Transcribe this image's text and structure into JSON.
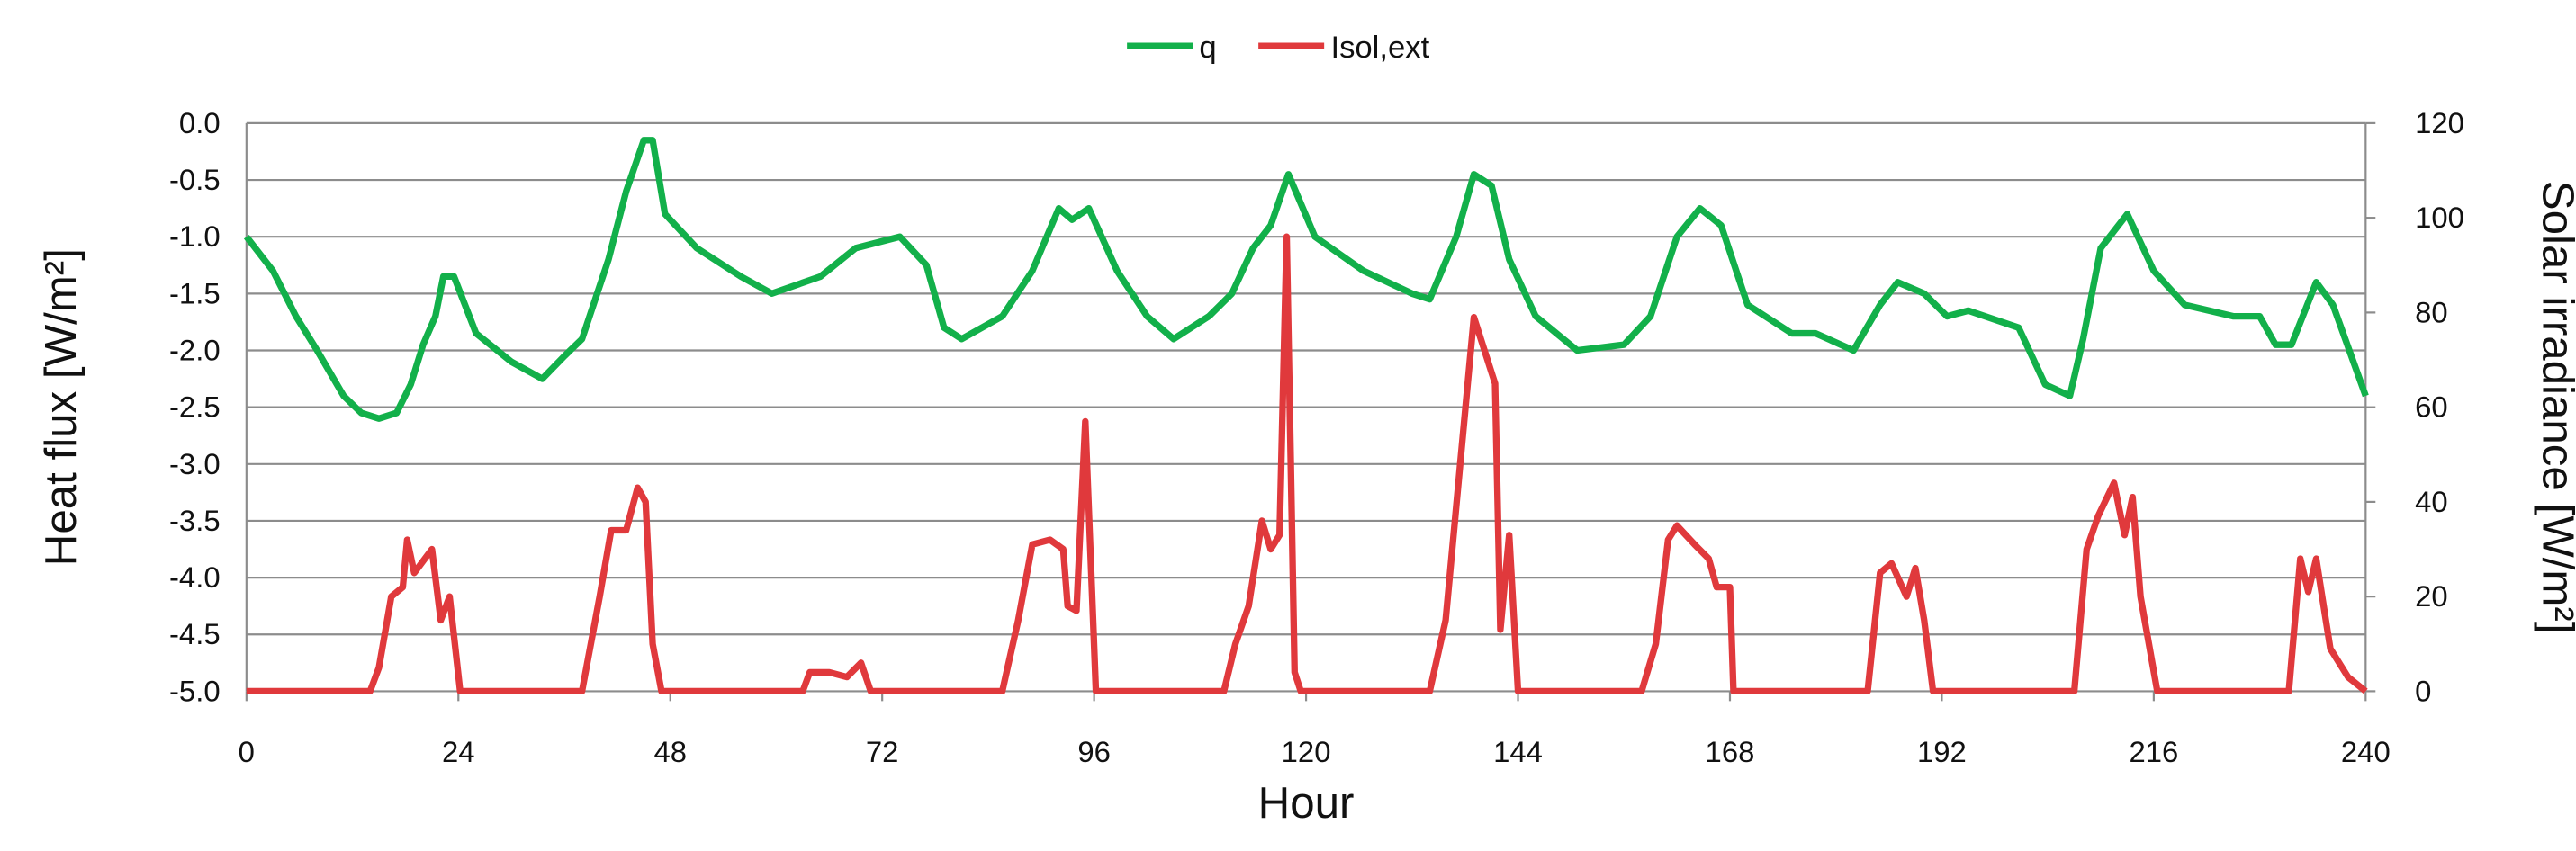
{
  "chart_data": {
    "type": "line",
    "x_label": "Hour",
    "y_label": "Heat flux [W/m²]",
    "y2_label": "Solar irradiance [W/m²]",
    "xlim": [
      0,
      240
    ],
    "xticks": [
      0,
      24,
      48,
      72,
      96,
      120,
      144,
      168,
      192,
      216,
      240
    ],
    "ylim": [
      -5,
      0
    ],
    "yticks": [
      {
        "value": 0,
        "label": "0.0"
      },
      -0.5,
      {
        "value": -1,
        "label": "-1.0"
      },
      -1.5,
      {
        "value": -2,
        "label": "-2.0"
      },
      -2.5,
      {
        "value": -3,
        "label": "-3.0"
      },
      -3.5,
      {
        "value": -4,
        "label": "-4.0"
      },
      -4.5,
      {
        "value": -5,
        "label": "-5.0"
      }
    ],
    "y2lim": [
      0,
      120
    ],
    "y2ticks": [
      0,
      20,
      40,
      60,
      80,
      100,
      120
    ],
    "grid": true,
    "legend": "top",
    "series": [
      {
        "name": "q",
        "color": "#12b04a",
        "x": [
          0,
          3,
          5.6,
          8,
          11,
          13,
          15,
          17,
          18.6,
          20,
          21.4,
          22.3,
          23.5,
          26,
          30,
          33.5,
          36,
          38,
          41,
          43,
          45,
          46,
          47.4,
          51,
          56,
          59.5,
          65,
          69,
          74,
          77,
          79,
          81,
          85.6,
          89,
          92,
          93.5,
          95.4,
          98.6,
          102,
          105,
          109,
          111.6,
          114,
          116,
          118,
          121,
          126.5,
          132,
          134,
          137,
          139,
          141,
          143,
          146,
          150.7,
          156,
          159,
          162,
          164.6,
          167,
          170,
          175,
          177.7,
          182,
          185,
          187,
          190,
          192.6,
          195,
          200.7,
          203.7,
          206.5,
          208,
          210,
          213,
          216,
          219.5,
          225,
          228,
          229.8,
          231.6,
          234.4,
          236.3,
          240
        ],
        "values": [
          -1.0,
          -1.3,
          -1.7,
          -2.0,
          -2.4,
          -2.55,
          -2.6,
          -2.55,
          -2.3,
          -1.95,
          -1.7,
          -1.35,
          -1.35,
          -1.85,
          -2.1,
          -2.25,
          -2.05,
          -1.9,
          -1.2,
          -0.6,
          -0.15,
          -0.15,
          -0.8,
          -1.1,
          -1.35,
          -1.5,
          -1.35,
          -1.1,
          -1.0,
          -1.25,
          -1.8,
          -1.9,
          -1.7,
          -1.3,
          -0.75,
          -0.85,
          -0.75,
          -1.3,
          -1.7,
          -1.9,
          -1.7,
          -1.5,
          -1.1,
          -0.9,
          -0.45,
          -1.0,
          -1.3,
          -1.5,
          -1.55,
          -1.0,
          -0.45,
          -0.55,
          -1.2,
          -1.7,
          -2.0,
          -1.95,
          -1.7,
          -1.0,
          -0.75,
          -0.9,
          -1.6,
          -1.85,
          -1.85,
          -2.0,
          -1.6,
          -1.4,
          -1.5,
          -1.7,
          -1.65,
          -1.8,
          -2.3,
          -2.4,
          -1.9,
          -1.1,
          -0.8,
          -1.3,
          -1.6,
          -1.7,
          -1.7,
          -1.95,
          -1.95,
          -1.4,
          -1.6,
          -2.4
        ]
      },
      {
        "name": "Isol,ext",
        "color": "#e0393c",
        "axis": "y2",
        "x": [
          0,
          14,
          15,
          16.4,
          17.7,
          18.2,
          19,
          21,
          22,
          23,
          24.2,
          38,
          40,
          41.3,
          43,
          44.3,
          45.2,
          46,
          47,
          63,
          63.8,
          66,
          68,
          69.6,
          70.7,
          85.6,
          87.4,
          89,
          91,
          92.5,
          93,
          94,
          95,
          96.2,
          110.7,
          112,
          113.5,
          115,
          116,
          117,
          117.8,
          118.7,
          119.4,
          134,
          135.8,
          139,
          141.4,
          142,
          143,
          144,
          158,
          159.6,
          161,
          162,
          164,
          165.6,
          166.5,
          168,
          168.4,
          183.6,
          185,
          186.3,
          188,
          189,
          190,
          191,
          207,
          208.4,
          209.7,
          211.5,
          212.7,
          213.6,
          214.5,
          216.4,
          231.3,
          232.6,
          233.5,
          234.4,
          236,
          238,
          240
        ],
        "values": [
          0,
          0,
          5,
          20,
          22,
          32,
          25,
          30,
          15,
          20,
          0,
          0,
          20,
          34,
          34,
          43,
          40,
          10,
          0,
          0,
          4,
          4,
          3,
          6,
          0,
          0,
          15,
          31,
          32,
          30,
          18,
          17,
          57,
          0,
          0,
          10,
          18,
          36,
          30,
          33,
          96,
          4,
          0,
          0,
          15,
          79,
          65,
          13,
          33,
          0,
          0,
          10,
          32,
          35,
          31,
          28,
          22,
          22,
          0,
          0,
          25,
          27,
          20,
          26,
          15,
          0,
          0,
          30,
          37,
          44,
          33,
          41,
          20,
          0,
          0,
          28,
          21,
          28,
          9,
          3,
          0
        ]
      }
    ]
  }
}
